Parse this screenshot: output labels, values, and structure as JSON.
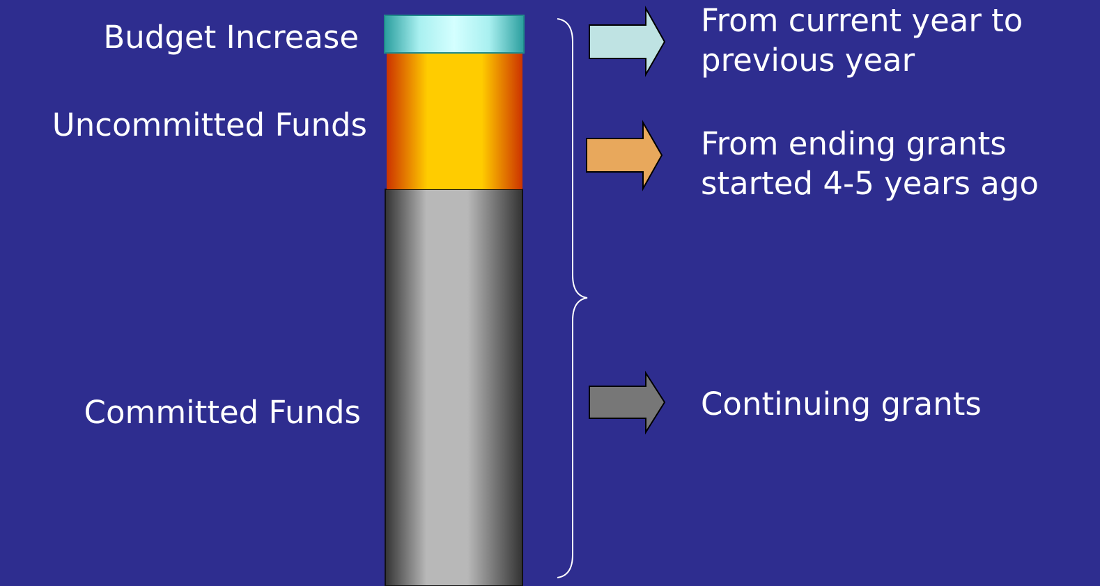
{
  "segments": [
    {
      "label": "Budget Increase",
      "description": [
        "From current year to",
        "previous year"
      ]
    },
    {
      "label": "Uncommitted Funds",
      "description": [
        "From ending grants",
        "started 4-5 years ago"
      ]
    },
    {
      "label": "Committed Funds",
      "description": [
        "Continuing grants"
      ]
    }
  ]
}
